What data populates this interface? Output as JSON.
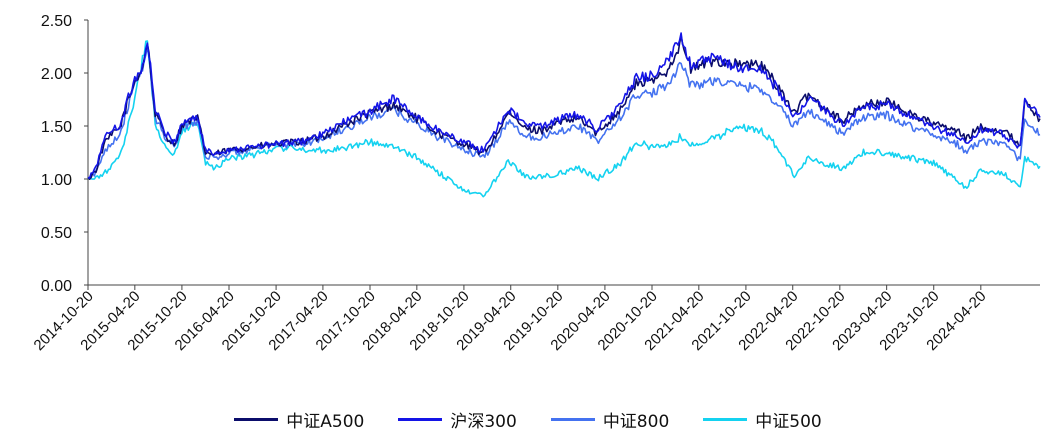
{
  "chart_data": {
    "type": "line",
    "title": "",
    "xlabel": "",
    "ylabel": "",
    "ylim": [
      0,
      2.5
    ],
    "yticks": [
      "0.00",
      "0.50",
      "1.00",
      "1.50",
      "2.00",
      "2.50"
    ],
    "xticks": [
      "2014-10-20",
      "2015-04-20",
      "2015-10-20",
      "2016-04-20",
      "2016-10-20",
      "2017-04-20",
      "2017-10-20",
      "2018-04-20",
      "2018-10-20",
      "2019-04-20",
      "2019-10-20",
      "2020-04-20",
      "2020-10-20",
      "2021-04-20",
      "2021-10-20",
      "2022-04-20",
      "2022-10-20",
      "2023-04-20",
      "2023-10-20",
      "2024-04-20"
    ],
    "grid": false,
    "legend_position": "bottom",
    "x": [
      "2014-10-20",
      "2014-11-20",
      "2014-12-20",
      "2015-01-20",
      "2015-02-20",
      "2015-03-20",
      "2015-04-20",
      "2015-05-20",
      "2015-06-08",
      "2015-07-08",
      "2015-08-20",
      "2015-09-20",
      "2015-10-20",
      "2015-11-20",
      "2015-12-20",
      "2016-01-20",
      "2016-02-20",
      "2016-04-20",
      "2016-07-20",
      "2016-10-20",
      "2017-01-20",
      "2017-04-20",
      "2017-07-20",
      "2017-10-20",
      "2018-01-20",
      "2018-04-20",
      "2018-07-20",
      "2018-10-20",
      "2019-01-03",
      "2019-02-20",
      "2019-04-10",
      "2019-06-20",
      "2019-08-20",
      "2019-10-20",
      "2020-01-10",
      "2020-03-20",
      "2020-06-20",
      "2020-08-20",
      "2020-10-20",
      "2020-12-20",
      "2021-02-10",
      "2021-03-20",
      "2021-06-20",
      "2021-09-20",
      "2021-12-20",
      "2022-02-20",
      "2022-04-26",
      "2022-06-20",
      "2022-08-20",
      "2022-10-31",
      "2023-01-20",
      "2023-04-20",
      "2023-07-20",
      "2023-10-20",
      "2024-01-20",
      "2024-02-20",
      "2024-04-20",
      "2024-07-20",
      "2024-09-20",
      "2024-10-08",
      "2024-11-20",
      "2024-12-06"
    ],
    "series": [
      {
        "name": "中证A500",
        "color": "#0b0d6b",
        "values": [
          1.0,
          1.08,
          1.32,
          1.42,
          1.48,
          1.7,
          1.92,
          2.05,
          2.3,
          1.62,
          1.4,
          1.33,
          1.5,
          1.55,
          1.57,
          1.25,
          1.23,
          1.27,
          1.3,
          1.33,
          1.35,
          1.4,
          1.52,
          1.62,
          1.7,
          1.57,
          1.42,
          1.33,
          1.24,
          1.4,
          1.62,
          1.47,
          1.46,
          1.53,
          1.57,
          1.43,
          1.66,
          1.9,
          1.92,
          2.03,
          2.3,
          2.04,
          2.12,
          2.08,
          2.07,
          1.88,
          1.62,
          1.8,
          1.68,
          1.55,
          1.7,
          1.73,
          1.62,
          1.52,
          1.45,
          1.38,
          1.49,
          1.45,
          1.33,
          1.72,
          1.6,
          1.57
        ]
      },
      {
        "name": "沪深300",
        "color": "#1414e6",
        "values": [
          1.0,
          1.1,
          1.38,
          1.46,
          1.5,
          1.72,
          1.95,
          2.05,
          2.32,
          1.65,
          1.42,
          1.35,
          1.52,
          1.57,
          1.58,
          1.27,
          1.24,
          1.28,
          1.3,
          1.33,
          1.35,
          1.42,
          1.55,
          1.64,
          1.76,
          1.58,
          1.45,
          1.35,
          1.27,
          1.46,
          1.66,
          1.51,
          1.5,
          1.56,
          1.61,
          1.47,
          1.7,
          1.95,
          1.98,
          2.1,
          2.35,
          2.08,
          2.14,
          2.05,
          2.03,
          1.85,
          1.57,
          1.77,
          1.65,
          1.52,
          1.67,
          1.7,
          1.59,
          1.48,
          1.41,
          1.33,
          1.46,
          1.42,
          1.3,
          1.76,
          1.62,
          1.58
        ]
      },
      {
        "name": "中证800",
        "color": "#4472f0",
        "values": [
          1.0,
          1.06,
          1.25,
          1.35,
          1.42,
          1.65,
          1.88,
          2.05,
          2.25,
          1.58,
          1.38,
          1.3,
          1.48,
          1.53,
          1.55,
          1.22,
          1.2,
          1.24,
          1.28,
          1.32,
          1.33,
          1.38,
          1.48,
          1.58,
          1.65,
          1.52,
          1.38,
          1.28,
          1.2,
          1.35,
          1.55,
          1.4,
          1.4,
          1.45,
          1.5,
          1.35,
          1.58,
          1.8,
          1.8,
          1.9,
          2.1,
          1.88,
          1.93,
          1.88,
          1.85,
          1.7,
          1.5,
          1.65,
          1.55,
          1.43,
          1.58,
          1.6,
          1.5,
          1.42,
          1.33,
          1.25,
          1.36,
          1.32,
          1.18,
          1.58,
          1.45,
          1.42
        ]
      },
      {
        "name": "中证500",
        "color": "#14d2f0",
        "values": [
          1.0,
          1.0,
          1.05,
          1.12,
          1.2,
          1.45,
          1.78,
          2.12,
          2.33,
          1.52,
          1.28,
          1.22,
          1.45,
          1.5,
          1.55,
          1.15,
          1.1,
          1.2,
          1.22,
          1.3,
          1.28,
          1.27,
          1.3,
          1.35,
          1.3,
          1.2,
          1.05,
          0.9,
          0.84,
          1.0,
          1.18,
          1.02,
          1.02,
          1.05,
          1.1,
          1.0,
          1.15,
          1.35,
          1.3,
          1.32,
          1.4,
          1.32,
          1.38,
          1.5,
          1.45,
          1.3,
          1.02,
          1.2,
          1.15,
          1.1,
          1.25,
          1.25,
          1.2,
          1.15,
          0.98,
          0.92,
          1.08,
          1.05,
          0.92,
          1.2,
          1.12,
          1.12
        ]
      }
    ]
  }
}
